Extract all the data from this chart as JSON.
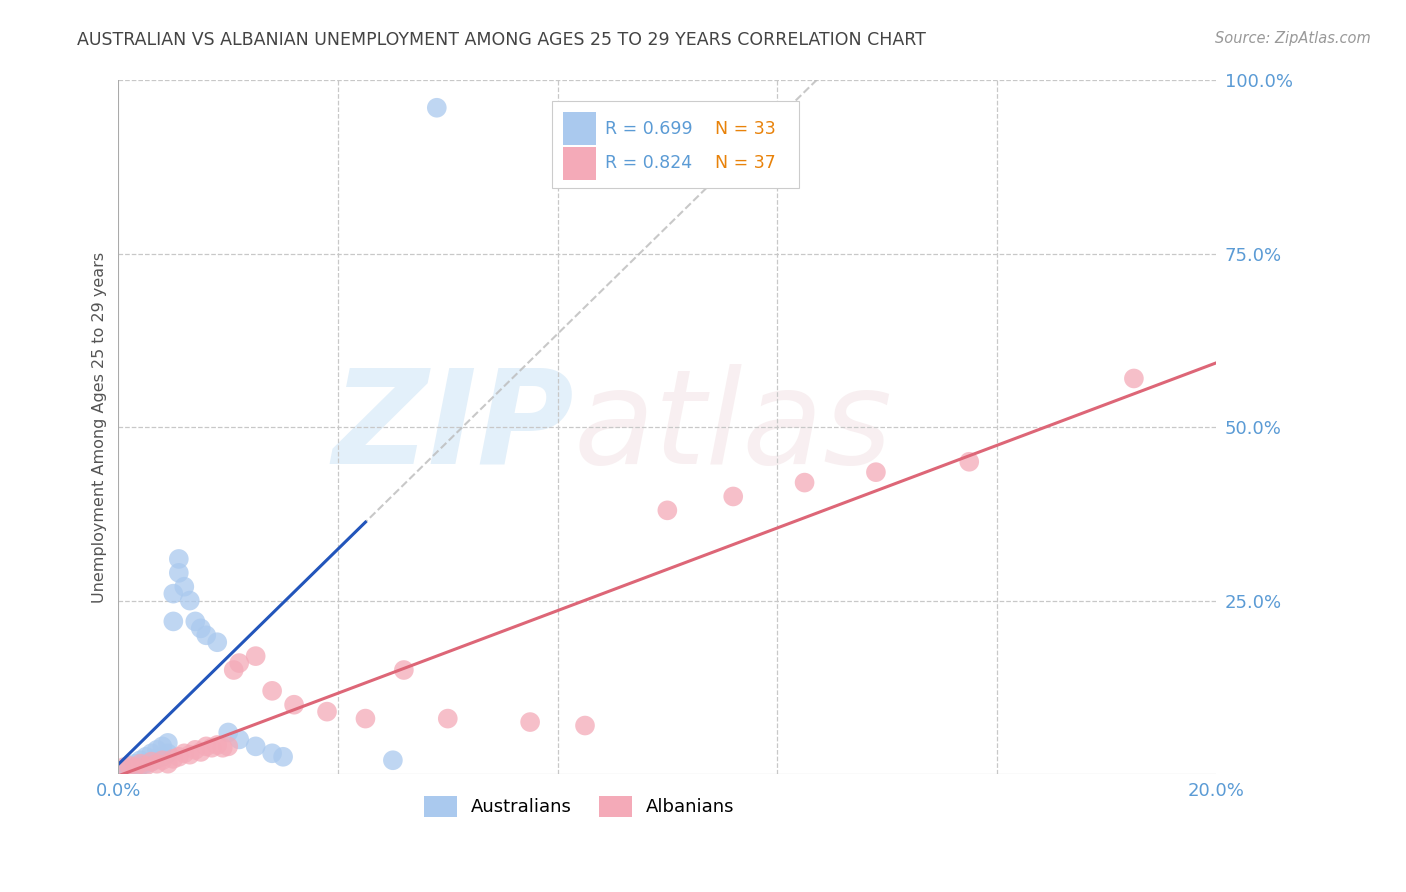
{
  "title": "AUSTRALIAN VS ALBANIAN UNEMPLOYMENT AMONG AGES 25 TO 29 YEARS CORRELATION CHART",
  "source": "Source: ZipAtlas.com",
  "ylabel": "Unemployment Among Ages 25 to 29 years",
  "legend_blue_R": "R = 0.699",
  "legend_blue_N": "N = 33",
  "legend_pink_R": "R = 0.824",
  "legend_pink_N": "N = 37",
  "background_color": "#ffffff",
  "grid_color": "#c8c8c8",
  "title_color": "#444444",
  "right_axis_color": "#5b9bd5",
  "orange_color": "#e8820a",
  "source_color": "#999999",
  "legend_blue_color": "#aac9ee",
  "legend_pink_color": "#f4aab8",
  "scatter_blue_color": "#aac9ee",
  "scatter_pink_color": "#f4aab8",
  "line_blue_color": "#2255bb",
  "line_pink_color": "#dd6677",
  "line_dashed_color": "#bbbbbb",
  "aus_x": [
    0.001,
    0.002,
    0.003,
    0.003,
    0.004,
    0.004,
    0.005,
    0.005,
    0.006,
    0.006,
    0.007,
    0.007,
    0.008,
    0.008,
    0.009,
    0.009,
    0.01,
    0.01,
    0.011,
    0.011,
    0.012,
    0.013,
    0.014,
    0.015,
    0.016,
    0.018,
    0.02,
    0.022,
    0.025,
    0.028,
    0.03,
    0.05,
    0.058
  ],
  "aus_y": [
    0.005,
    0.008,
    0.01,
    0.015,
    0.012,
    0.02,
    0.015,
    0.025,
    0.018,
    0.03,
    0.022,
    0.035,
    0.025,
    0.04,
    0.03,
    0.045,
    0.22,
    0.26,
    0.29,
    0.31,
    0.27,
    0.25,
    0.22,
    0.21,
    0.2,
    0.19,
    0.06,
    0.05,
    0.04,
    0.03,
    0.025,
    0.02,
    0.96
  ],
  "alb_x": [
    0.001,
    0.002,
    0.003,
    0.004,
    0.005,
    0.006,
    0.007,
    0.008,
    0.009,
    0.01,
    0.011,
    0.012,
    0.013,
    0.014,
    0.015,
    0.016,
    0.017,
    0.018,
    0.019,
    0.02,
    0.021,
    0.022,
    0.025,
    0.028,
    0.032,
    0.038,
    0.045,
    0.052,
    0.06,
    0.075,
    0.085,
    0.1,
    0.112,
    0.125,
    0.138,
    0.155,
    0.185
  ],
  "alb_y": [
    0.01,
    0.012,
    0.01,
    0.015,
    0.012,
    0.018,
    0.015,
    0.02,
    0.015,
    0.022,
    0.025,
    0.03,
    0.028,
    0.035,
    0.032,
    0.04,
    0.038,
    0.042,
    0.038,
    0.04,
    0.15,
    0.16,
    0.17,
    0.12,
    0.1,
    0.09,
    0.08,
    0.15,
    0.08,
    0.075,
    0.07,
    0.38,
    0.4,
    0.42,
    0.435,
    0.45,
    0.57
  ],
  "xlim": [
    0.0,
    0.2
  ],
  "ylim": [
    0.0,
    1.0
  ],
  "figsize": [
    14.06,
    8.92
  ],
  "dpi": 100
}
